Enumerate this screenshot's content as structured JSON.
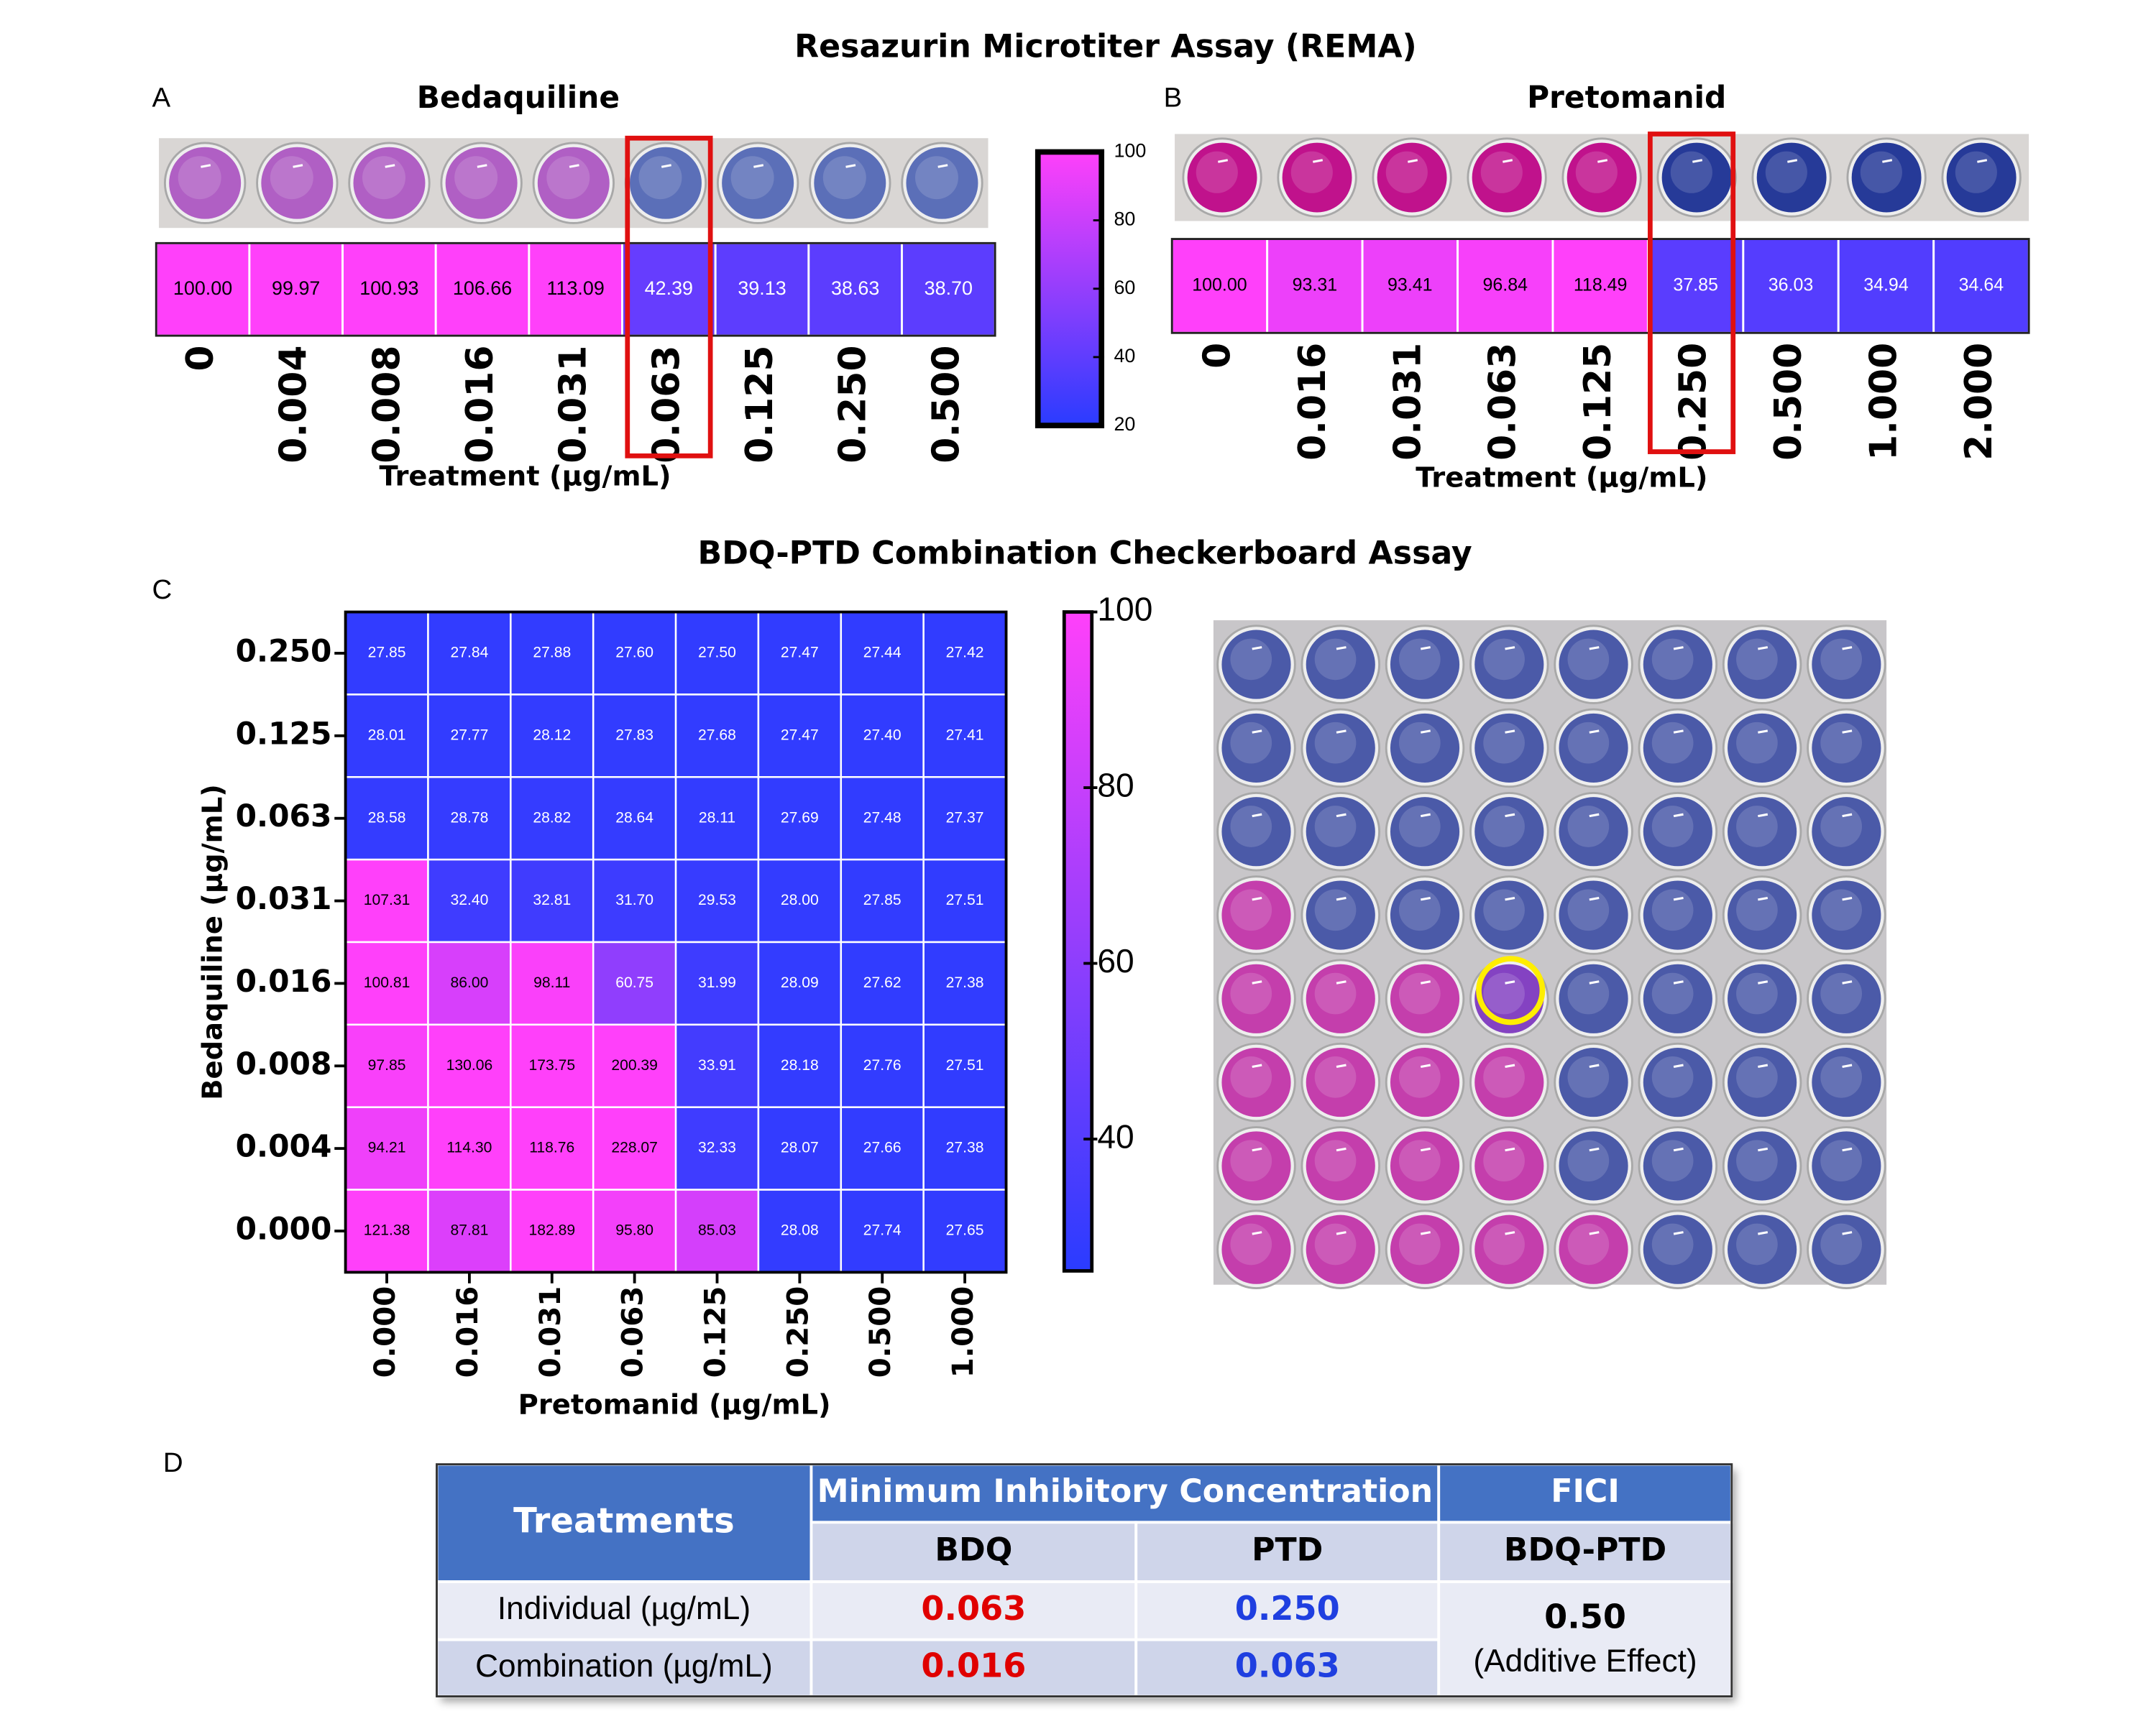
{
  "title": "Resazurin Microtiter Assay (REMA)",
  "subtitle": "BDQ-PTD Combination Checkerboard Assay",
  "chart_data": [
    {
      "type": "strip",
      "panel": "A",
      "title": "Bedaquiline",
      "categories": [
        "0",
        "0.004",
        "0.008",
        "0.016",
        "0.031",
        "0.063",
        "0.125",
        "0.250",
        "0.500"
      ],
      "values": [
        100.0,
        99.97,
        100.93,
        106.66,
        113.09,
        42.39,
        39.13,
        38.63,
        38.7
      ],
      "value_labels": [
        "100.00",
        "99.97",
        "100.93",
        "106.66",
        "113.09",
        "42.39",
        "39.13",
        "38.63",
        "38.70"
      ],
      "xlabel": "Treatment (µg/mL)"
    },
    {
      "type": "strip",
      "panel": "B",
      "title": "Pretomanid",
      "categories": [
        "0",
        "0.016",
        "0.031",
        "0.063",
        "0.125",
        "0.250",
        "0.500",
        "1.000",
        "2.000"
      ],
      "values": [
        100.0,
        93.31,
        93.41,
        96.84,
        118.49,
        37.85,
        36.03,
        34.94,
        34.64
      ],
      "value_labels": [
        "100.00",
        "93.31",
        "93.41",
        "96.84",
        "118.49",
        "37.85",
        "36.03",
        "34.94",
        "34.64"
      ],
      "xlabel": "Treatment (µg/mL)"
    },
    {
      "type": "colorbar",
      "clim": [
        20,
        100
      ],
      "ticks": [
        20,
        40,
        60,
        80,
        100
      ],
      "colors": [
        "#2a3cff",
        "#ff40fa"
      ]
    },
    {
      "type": "heatmap",
      "panel": "C",
      "categories": [
        "0.000",
        "0.016",
        "0.031",
        "0.063",
        "0.125",
        "0.250",
        "0.500",
        "1.000"
      ],
      "y_categories": [
        "0.250",
        "0.125",
        "0.063",
        "0.031",
        "0.016",
        "0.008",
        "0.004",
        "0.000"
      ],
      "values": [
        [
          27.85,
          27.84,
          27.88,
          27.6,
          27.5,
          27.47,
          27.44,
          27.42
        ],
        [
          28.01,
          27.77,
          28.12,
          27.83,
          27.68,
          27.47,
          27.4,
          27.41
        ],
        [
          28.58,
          28.78,
          28.82,
          28.64,
          28.11,
          27.69,
          27.48,
          27.37
        ],
        [
          107.31,
          32.4,
          32.81,
          31.7,
          29.53,
          28.0,
          27.85,
          27.51
        ],
        [
          100.81,
          86.0,
          98.11,
          60.75,
          31.99,
          28.09,
          27.62,
          27.38
        ],
        [
          97.85,
          130.06,
          173.75,
          200.39,
          33.91,
          28.18,
          27.76,
          27.51
        ],
        [
          94.21,
          114.3,
          118.76,
          228.07,
          32.33,
          28.07,
          27.66,
          27.38
        ],
        [
          121.38,
          87.81,
          182.89,
          95.8,
          85.03,
          28.08,
          27.74,
          27.65
        ]
      ],
      "value_labels": [
        [
          "27.85",
          "27.84",
          "27.88",
          "27.60",
          "27.50",
          "27.47",
          "27.44",
          "27.42"
        ],
        [
          "28.01",
          "27.77",
          "28.12",
          "27.83",
          "27.68",
          "27.47",
          "27.40",
          "27.41"
        ],
        [
          "28.58",
          "28.78",
          "28.82",
          "28.64",
          "28.11",
          "27.69",
          "27.48",
          "27.37"
        ],
        [
          "107.31",
          "32.40",
          "32.81",
          "31.70",
          "29.53",
          "28.00",
          "27.85",
          "27.51"
        ],
        [
          "100.81",
          "86.00",
          "98.11",
          "60.75",
          "31.99",
          "28.09",
          "27.62",
          "27.38"
        ],
        [
          "97.85",
          "130.06",
          "173.75",
          "200.39",
          "33.91",
          "28.18",
          "27.76",
          "27.51"
        ],
        [
          "94.21",
          "114.30",
          "118.76",
          "228.07",
          "32.33",
          "28.07",
          "27.66",
          "27.38"
        ],
        [
          "121.38",
          "87.81",
          "182.89",
          "95.80",
          "85.03",
          "28.08",
          "27.74",
          "27.65"
        ]
      ],
      "xlabel": "Pretomanid (µg/mL)",
      "ylabel": "Bedaquiline (µg/mL)",
      "colorbar": {
        "clim": [
          25,
          100
        ],
        "ticks": [
          40,
          60,
          80,
          100
        ],
        "colors": [
          "#2a3cff",
          "#ff40fa"
        ]
      }
    }
  ],
  "table": {
    "panel": "D",
    "header": [
      "Treatments",
      "Minimum Inhibitory Concentration",
      "FICI"
    ],
    "subheader": [
      "BDQ",
      "PTD",
      "BDQ-PTD"
    ],
    "rows": [
      [
        "Individual (µg/mL)",
        "0.063",
        "0.250"
      ],
      [
        "Combination (µg/mL)",
        "0.016",
        "0.063"
      ]
    ],
    "fici": [
      "0.50",
      "(Additive Effect)"
    ]
  }
}
